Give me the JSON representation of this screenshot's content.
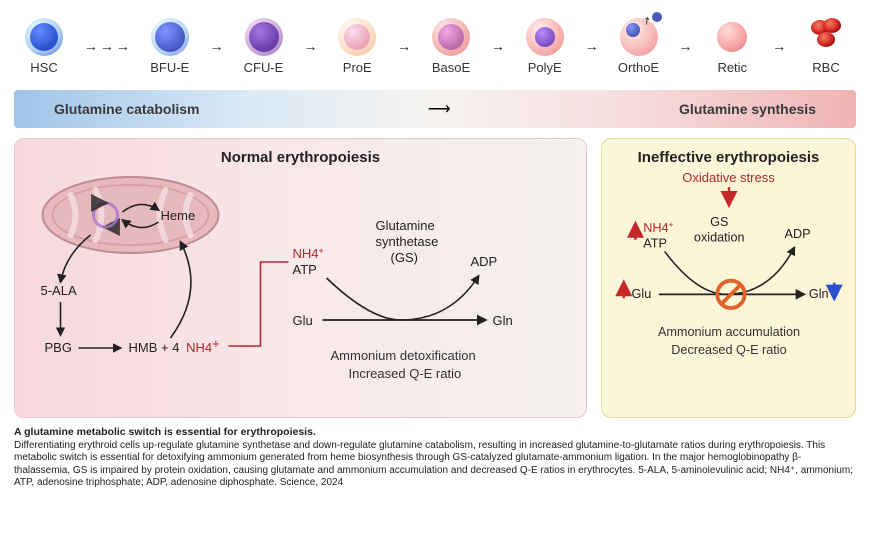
{
  "lineage": {
    "stages": [
      {
        "name": "HSC",
        "outer": "#aecdf2",
        "outerEdge": "#3a67c8",
        "inner": "#2a4fcf",
        "innerSize": 28,
        "innerX": 5,
        "innerY": 5
      },
      {
        "name": "BFU-E",
        "outer": "#b8d6f2",
        "outerEdge": "#5a7fd0",
        "inner": "#4658c7",
        "innerSize": 30,
        "innerX": 4,
        "innerY": 4
      },
      {
        "name": "CFU-E",
        "outer": "#cba7d4",
        "outerEdge": "#9a6ab4",
        "inner": "#6a3ca8",
        "innerSize": 30,
        "innerX": 4,
        "innerY": 4
      },
      {
        "name": "ProE",
        "outer": "#fddcc1",
        "outerEdge": "#f2b98a",
        "inner": "#e8a3b5",
        "innerSize": 26,
        "innerX": 6,
        "innerY": 6
      },
      {
        "name": "BasoE",
        "outer": "#f4b0b0",
        "outerEdge": "#e88a8a",
        "inner": "#b96aa8",
        "innerSize": 26,
        "innerX": 6,
        "innerY": 6
      },
      {
        "name": "PolyE",
        "outer": "#f6b2b0",
        "outerEdge": "#ea8a88",
        "inner": "#7a4fbf",
        "innerSize": 20,
        "innerX": 9,
        "innerY": 9
      },
      {
        "name": "OrthoE",
        "outer": "#f6b4b2",
        "outerEdge": "#ea8c8a",
        "inner": "#4a58b8",
        "innerSize": 14,
        "innerX": 6,
        "innerY": 5,
        "expel": true
      },
      {
        "name": "Retic",
        "outer": "#f6a0a0",
        "outerEdge": "#e87a7a",
        "inner": null,
        "small": true
      },
      {
        "name": "RBC",
        "rbc": true
      }
    ]
  },
  "switchBar": {
    "left": "Glutamine catabolism",
    "right": "Glutamine synthesis"
  },
  "normal": {
    "title": "Normal erythropoiesis",
    "heme": "Heme",
    "ala": "5-ALA",
    "pbg": "PBG",
    "hmb": "HMB + 4",
    "nh4": "NH4",
    "nh4atp1": "NH4",
    "atp": "ATP",
    "gs_top": "Glutamine",
    "gs_mid": "synthetase",
    "gs_par": "(GS)",
    "adp": "ADP",
    "glu": "Glu",
    "gln": "Gln",
    "cap1": "Ammonium detoxification",
    "cap2": "Increased Q-E ratio",
    "mito": {
      "fill": "#e6b9bd",
      "stroke": "#c08b91"
    }
  },
  "ineff": {
    "title": "Ineffective erythropoiesis",
    "ox": "Oxidative stress",
    "nh4": "NH4",
    "atp": "ATP",
    "gs1": "GS",
    "gs2": "oxidation",
    "adp": "ADP",
    "glu": "Glu",
    "gln": "Gln",
    "cap1": "Ammonium accumulation",
    "cap2": "Decreased Q-E ratio"
  },
  "caption": {
    "bold": "A glutamine metabolic switch is essential for erythropoiesis.",
    "body": "Differentiating erythroid cells up-regulate glutamine synthetase and down-regulate glutamine catabolism, resulting in increased glutamine-to-glutamate ratios during erythropoiesis. This metabolic switch is essential for detoxifying ammonium generated from heme biosynthesis through GS-catalyzed glutamate-ammonium ligation. In the major hemoglobinopathy β-thalassemia, GS is impaired by protein oxidation, causing glutamate and ammonium accumulation and decreased Q-E ratios in erythrocytes. 5-ALA, 5-aminolevulinic acid; NH4⁺, ammonium; ATP, adenosine triphosphate; ADP, adenosine diphosphate. Science, 2024"
  },
  "colors": {
    "redText": "#b32828",
    "blueArrow": "#2a4fcf",
    "redArrow": "#c62828",
    "orange": "#e0642a"
  }
}
